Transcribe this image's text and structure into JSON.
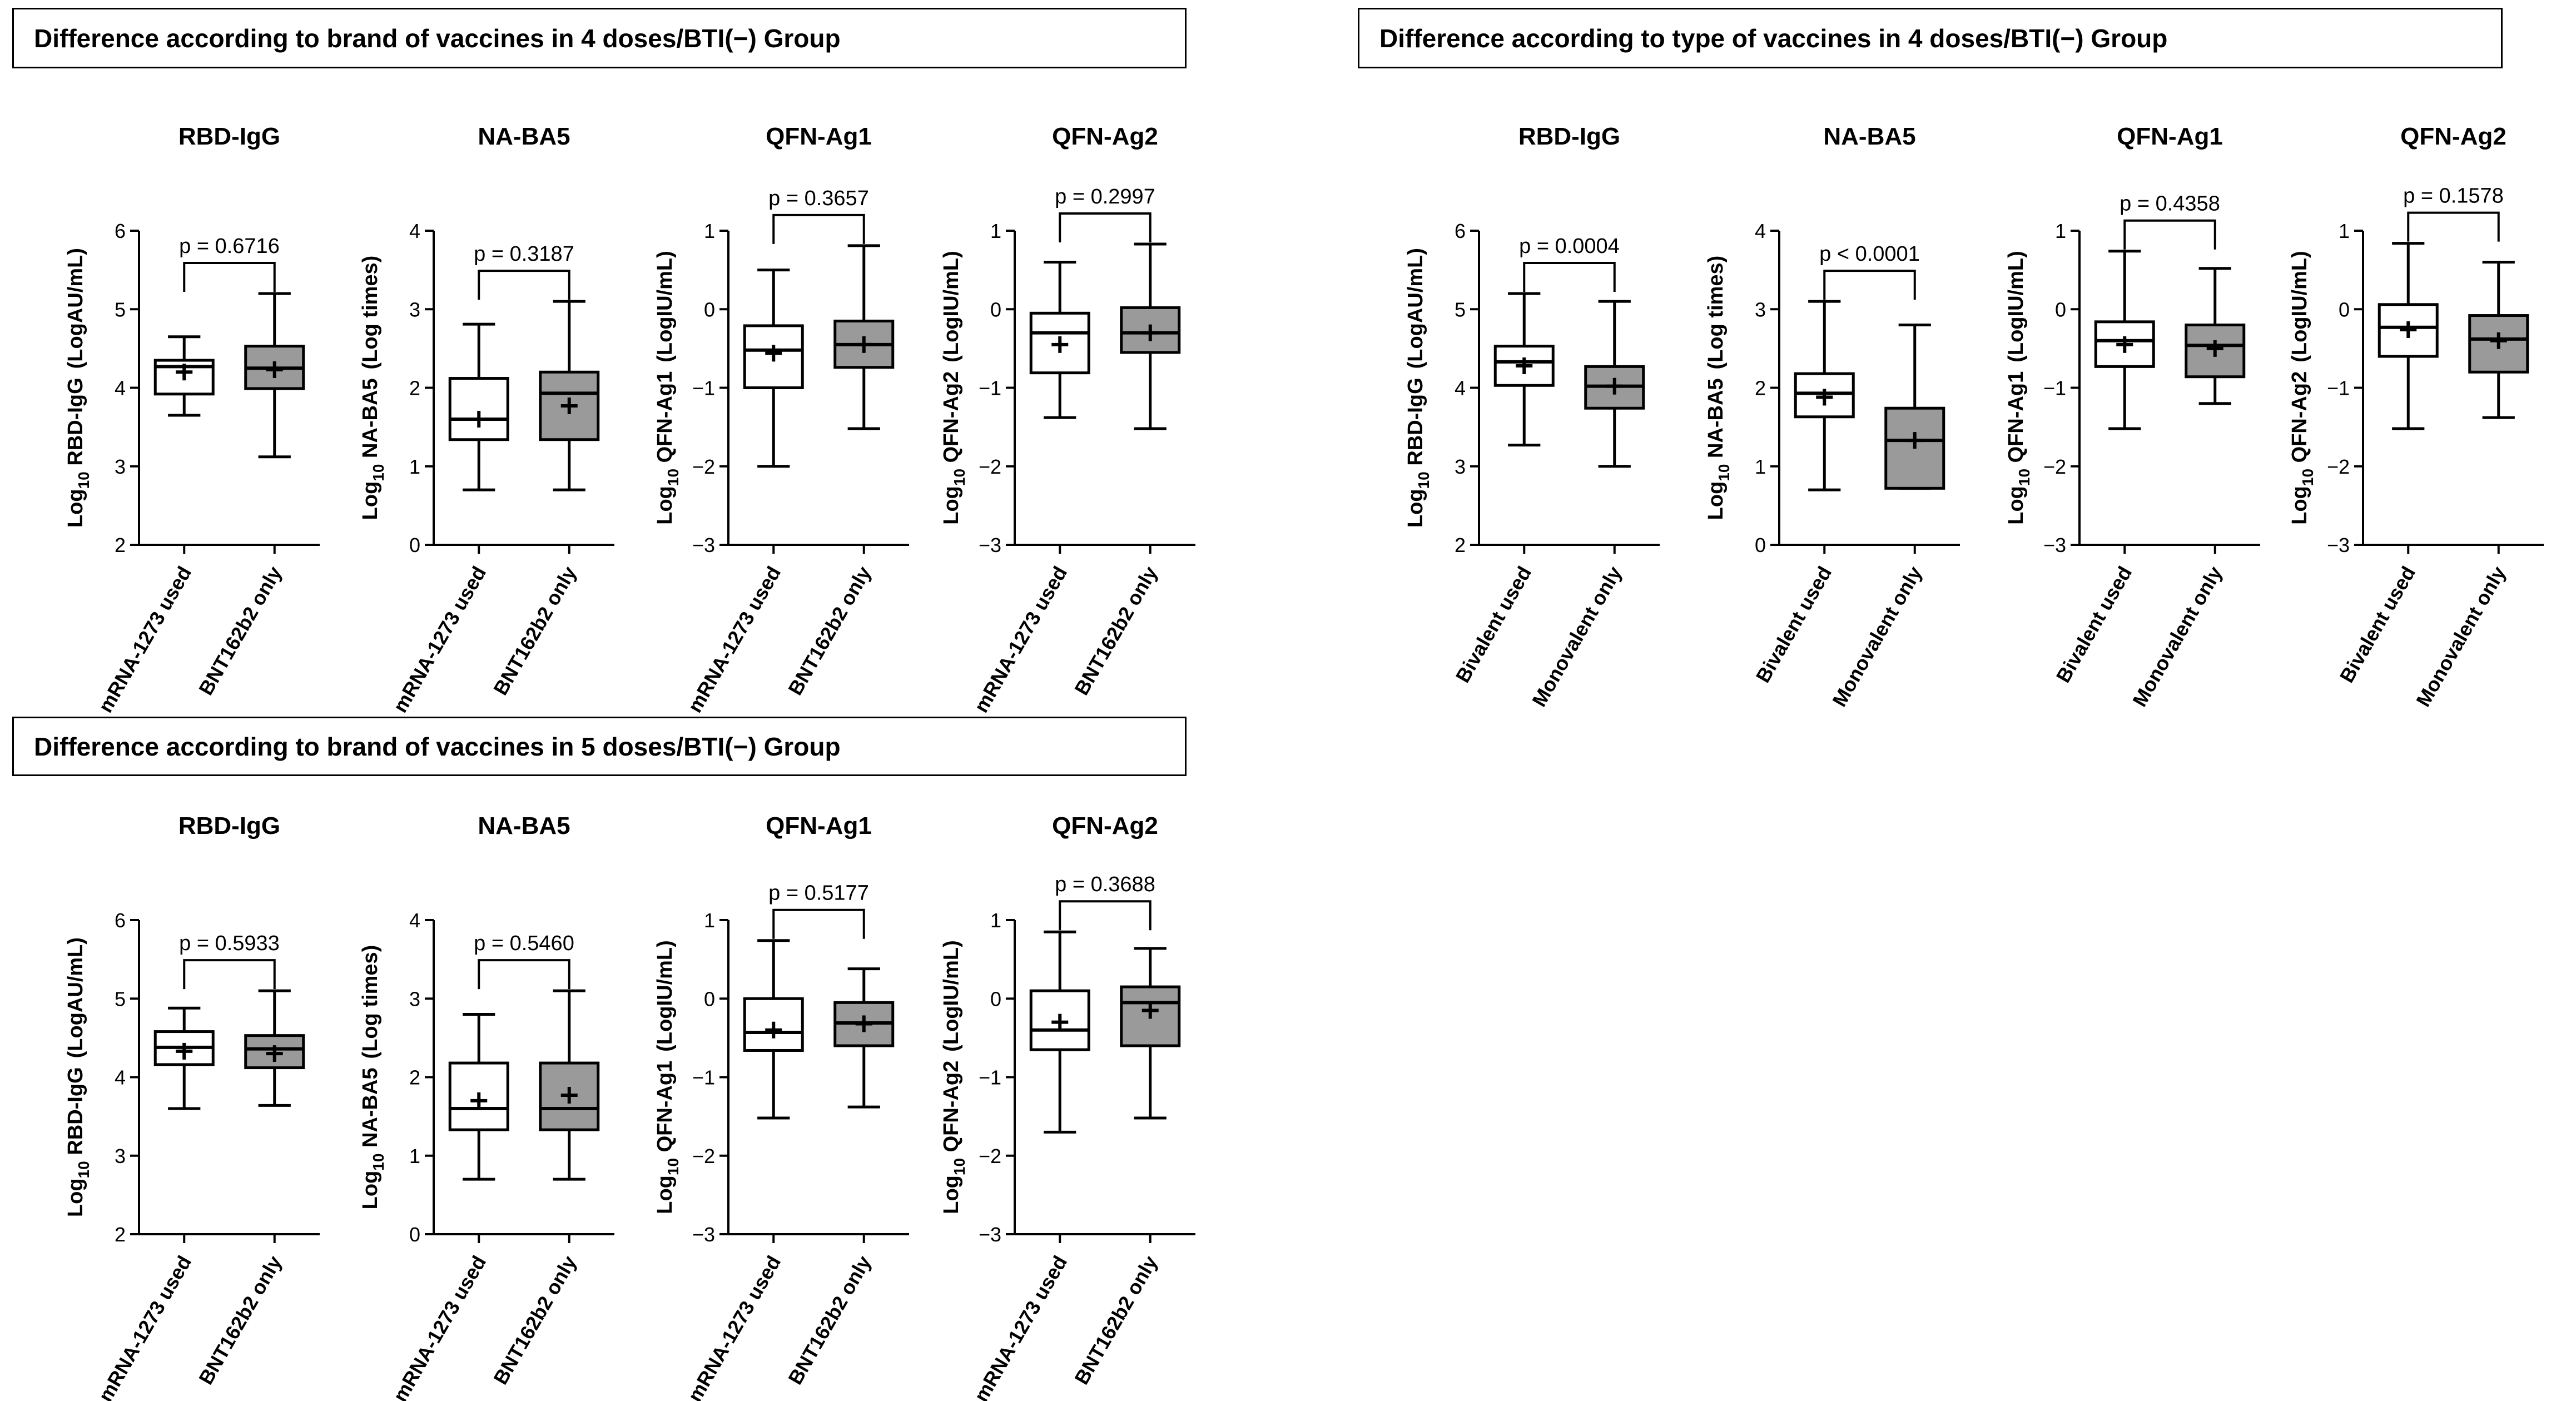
{
  "panel_titles": [
    "Difference according to brand of vaccines in 4 doses/BTI(−) Group",
    "Difference according to type of vaccines in 4 doses/BTI(−) Group",
    "Difference according to brand of vaccines in 5 doses/BTI(−) Group"
  ],
  "chart_data": [
    {
      "type": "box",
      "panel": 0,
      "title": "RBD-IgG",
      "ylabel_main": "RBD-IgG",
      "ylabel_unit": "(LogAU/mL)",
      "ylim": [
        2,
        6
      ],
      "yticks": [
        "2",
        "3",
        "4",
        "5",
        "6"
      ],
      "categories": [
        "mRNA-1273 used",
        "BNT162b2 only"
      ],
      "p_label": "p = 0.6716",
      "boxes": [
        {
          "min": 3.65,
          "q1": 3.92,
          "median": 4.27,
          "q3": 4.35,
          "max": 4.65,
          "mean": 4.2,
          "fill": "#ffffff"
        },
        {
          "min": 3.12,
          "q1": 3.99,
          "median": 4.25,
          "q3": 4.53,
          "max": 5.2,
          "mean": 4.23,
          "fill": "#9a9a9a"
        }
      ]
    },
    {
      "type": "box",
      "panel": 0,
      "title": "NA-BA5",
      "ylabel_main": "NA-BA5",
      "ylabel_unit": "(Log times)",
      "ylim": [
        0,
        4
      ],
      "yticks": [
        "0",
        "1",
        "2",
        "3",
        "4"
      ],
      "categories": [
        "mRNA-1273 used",
        "BNT162b2 only"
      ],
      "p_label": "p = 0.3187",
      "boxes": [
        {
          "min": 0.7,
          "q1": 1.34,
          "median": 1.6,
          "q3": 2.12,
          "max": 2.81,
          "mean": 1.6,
          "fill": "#ffffff"
        },
        {
          "min": 0.7,
          "q1": 1.34,
          "median": 1.93,
          "q3": 2.2,
          "max": 3.1,
          "mean": 1.77,
          "fill": "#9a9a9a"
        }
      ]
    },
    {
      "type": "box",
      "panel": 0,
      "title": "QFN-Ag1",
      "ylabel_main": "QFN-Ag1",
      "ylabel_unit": "(LogIU/mL)",
      "ylim": [
        -3,
        1
      ],
      "yticks": [
        "−3",
        "−2",
        "−1",
        "0",
        "1"
      ],
      "categories": [
        "mRNA-1273 used",
        "BNT162b2 only"
      ],
      "p_label": "p = 0.3657",
      "boxes": [
        {
          "min": -2.0,
          "q1": -1.0,
          "median": -0.52,
          "q3": -0.21,
          "max": 0.5,
          "mean": -0.56,
          "fill": "#ffffff"
        },
        {
          "min": -1.52,
          "q1": -0.74,
          "median": -0.45,
          "q3": -0.15,
          "max": 0.81,
          "mean": -0.45,
          "fill": "#9a9a9a"
        }
      ]
    },
    {
      "type": "box",
      "panel": 0,
      "title": "QFN-Ag2",
      "ylabel_main": "QFN-Ag2",
      "ylabel_unit": "(LogIU/mL)",
      "ylim": [
        -3,
        1
      ],
      "yticks": [
        "−3",
        "−2",
        "−1",
        "0",
        "1"
      ],
      "categories": [
        "mRNA-1273 used",
        "BNT162b2 only"
      ],
      "p_label": "p = 0.2997",
      "boxes": [
        {
          "min": -1.38,
          "q1": -0.81,
          "median": -0.3,
          "q3": -0.05,
          "max": 0.6,
          "mean": -0.45,
          "fill": "#ffffff"
        },
        {
          "min": -1.52,
          "q1": -0.55,
          "median": -0.3,
          "q3": 0.02,
          "max": 0.83,
          "mean": -0.3,
          "fill": "#9a9a9a"
        }
      ]
    },
    {
      "type": "box",
      "panel": 1,
      "title": "RBD-IgG",
      "ylabel_main": "RBD-IgG",
      "ylabel_unit": "(LogAU/mL)",
      "ylim": [
        2,
        6
      ],
      "yticks": [
        "2",
        "3",
        "4",
        "5",
        "6"
      ],
      "categories": [
        "Bivalent used",
        "Monovalent only"
      ],
      "p_label": "p = 0.0004",
      "boxes": [
        {
          "min": 3.27,
          "q1": 4.03,
          "median": 4.33,
          "q3": 4.53,
          "max": 5.2,
          "mean": 4.28,
          "fill": "#ffffff"
        },
        {
          "min": 3.0,
          "q1": 3.74,
          "median": 4.02,
          "q3": 4.27,
          "max": 5.1,
          "mean": 4.02,
          "fill": "#9a9a9a"
        }
      ]
    },
    {
      "type": "box",
      "panel": 1,
      "title": "NA-BA5",
      "ylabel_main": "NA-BA5",
      "ylabel_unit": "(Log times)",
      "ylim": [
        0,
        4
      ],
      "yticks": [
        "0",
        "1",
        "2",
        "3",
        "4"
      ],
      "categories": [
        "Bivalent used",
        "Monovalent only"
      ],
      "p_label": "p < 0.0001",
      "boxes": [
        {
          "min": 0.7,
          "q1": 1.63,
          "median": 1.93,
          "q3": 2.18,
          "max": 3.1,
          "mean": 1.88,
          "fill": "#ffffff"
        },
        {
          "min": 0.72,
          "q1": 0.72,
          "median": 1.33,
          "q3": 1.74,
          "max": 2.8,
          "mean": 1.33,
          "fill": "#9a9a9a"
        }
      ]
    },
    {
      "type": "box",
      "panel": 1,
      "title": "QFN-Ag1",
      "ylabel_main": "QFN-Ag1",
      "ylabel_unit": "(LogIU/mL)",
      "ylim": [
        -3,
        1
      ],
      "yticks": [
        "−3",
        "−2",
        "−1",
        "0",
        "1"
      ],
      "categories": [
        "Bivalent used",
        "Monovalent only"
      ],
      "p_label": "p = 0.4358",
      "boxes": [
        {
          "min": -1.52,
          "q1": -0.73,
          "median": -0.4,
          "q3": -0.16,
          "max": 0.74,
          "mean": -0.45,
          "fill": "#ffffff"
        },
        {
          "min": -1.2,
          "q1": -0.86,
          "median": -0.46,
          "q3": -0.2,
          "max": 0.52,
          "mean": -0.5,
          "fill": "#9a9a9a"
        }
      ]
    },
    {
      "type": "box",
      "panel": 1,
      "title": "QFN-Ag2",
      "ylabel_main": "QFN-Ag2",
      "ylabel_unit": "(LogIU/mL)",
      "ylim": [
        -3,
        1
      ],
      "yticks": [
        "−3",
        "−2",
        "−1",
        "0",
        "1"
      ],
      "categories": [
        "Bivalent used",
        "Monovalent only"
      ],
      "p_label": "p = 0.1578",
      "boxes": [
        {
          "min": -1.52,
          "q1": -0.6,
          "median": -0.23,
          "q3": 0.06,
          "max": 0.84,
          "mean": -0.26,
          "fill": "#ffffff"
        },
        {
          "min": -1.38,
          "q1": -0.8,
          "median": -0.38,
          "q3": -0.08,
          "max": 0.6,
          "mean": -0.4,
          "fill": "#9a9a9a"
        }
      ]
    },
    {
      "type": "box",
      "panel": 2,
      "title": "RBD-IgG",
      "ylabel_main": "RBD-IgG",
      "ylabel_unit": "(LogAU/mL)",
      "ylim": [
        2,
        6
      ],
      "yticks": [
        "2",
        "3",
        "4",
        "5",
        "6"
      ],
      "categories": [
        "mRNA-1273 used",
        "BNT162b2 only"
      ],
      "p_label": "p = 0.5933",
      "boxes": [
        {
          "min": 3.6,
          "q1": 4.16,
          "median": 4.38,
          "q3": 4.58,
          "max": 4.88,
          "mean": 4.33,
          "fill": "#ffffff"
        },
        {
          "min": 3.64,
          "q1": 4.12,
          "median": 4.36,
          "q3": 4.53,
          "max": 5.1,
          "mean": 4.3,
          "fill": "#9a9a9a"
        }
      ]
    },
    {
      "type": "box",
      "panel": 2,
      "title": "NA-BA5",
      "ylabel_main": "NA-BA5",
      "ylabel_unit": "(Log times)",
      "ylim": [
        0,
        4
      ],
      "yticks": [
        "0",
        "1",
        "2",
        "3",
        "4"
      ],
      "categories": [
        "mRNA-1273 used",
        "BNT162b2 only"
      ],
      "p_label": "p = 0.5460",
      "boxes": [
        {
          "min": 0.7,
          "q1": 1.33,
          "median": 1.6,
          "q3": 2.18,
          "max": 2.8,
          "mean": 1.7,
          "fill": "#ffffff"
        },
        {
          "min": 0.7,
          "q1": 1.33,
          "median": 1.6,
          "q3": 2.18,
          "max": 3.1,
          "mean": 1.77,
          "fill": "#9a9a9a"
        }
      ]
    },
    {
      "type": "box",
      "panel": 2,
      "title": "QFN-Ag1",
      "ylabel_main": "QFN-Ag1",
      "ylabel_unit": "(LogIU/mL)",
      "ylim": [
        -3,
        1
      ],
      "yticks": [
        "−3",
        "−2",
        "−1",
        "0",
        "1"
      ],
      "categories": [
        "mRNA-1273 used",
        "BNT162b2 only"
      ],
      "p_label": "p = 0.5177",
      "boxes": [
        {
          "min": -1.52,
          "q1": -0.66,
          "median": -0.43,
          "q3": 0.0,
          "max": 0.74,
          "mean": -0.4,
          "fill": "#ffffff"
        },
        {
          "min": -1.38,
          "q1": -0.6,
          "median": -0.31,
          "q3": -0.05,
          "max": 0.38,
          "mean": -0.32,
          "fill": "#9a9a9a"
        }
      ]
    },
    {
      "type": "box",
      "panel": 2,
      "title": "QFN-Ag2",
      "ylabel_main": "QFN-Ag2",
      "ylabel_unit": "(LogIU/mL)",
      "ylim": [
        -3,
        1
      ],
      "yticks": [
        "−3",
        "−2",
        "−1",
        "0",
        "1"
      ],
      "categories": [
        "mRNA-1273 used",
        "BNT162b2 only"
      ],
      "p_label": "p = 0.3688",
      "boxes": [
        {
          "min": -1.7,
          "q1": -0.65,
          "median": -0.4,
          "q3": 0.1,
          "max": 0.85,
          "mean": -0.3,
          "fill": "#ffffff"
        },
        {
          "min": -1.52,
          "q1": -0.6,
          "median": -0.05,
          "q3": 0.15,
          "max": 0.64,
          "mean": -0.15,
          "fill": "#9a9a9a"
        }
      ]
    }
  ]
}
